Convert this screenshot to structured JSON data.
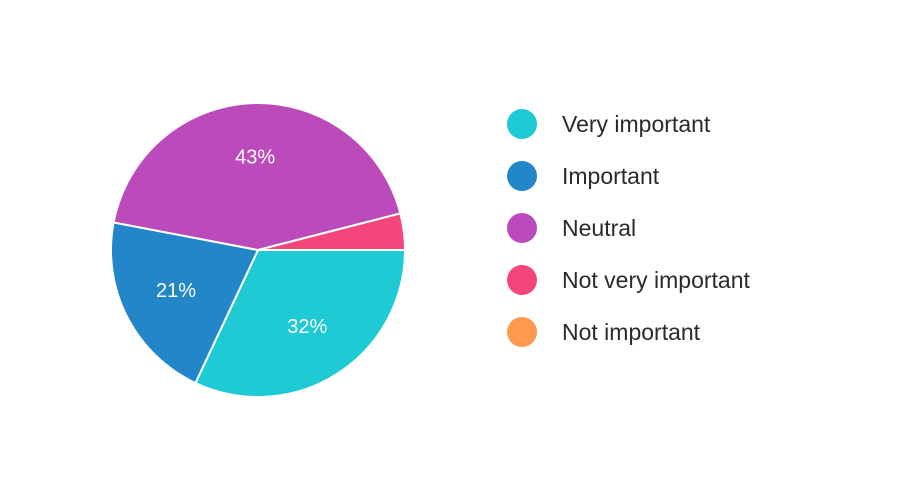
{
  "chart_data": {
    "type": "pie",
    "categories": [
      "Very important",
      "Important",
      "Neutral",
      "Not very important",
      "Not important"
    ],
    "values": [
      32,
      21,
      43,
      4,
      0
    ],
    "value_labels": [
      "32%",
      "21%",
      "43%",
      "",
      ""
    ],
    "colors": [
      "#1ECAD3",
      "#2286C8",
      "#BB4BBA",
      "#F4467A",
      "#FF9A4F"
    ],
    "legend_position": "right",
    "start_angle_deg": 90,
    "direction": "clockwise"
  }
}
